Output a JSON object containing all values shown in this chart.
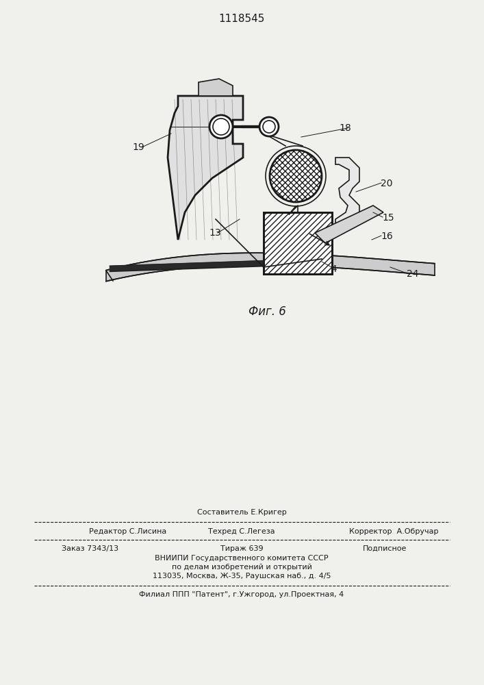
{
  "patent_number": "1118545",
  "fig_label": "Фиг. 6",
  "bg_color": "#f0f0ec",
  "line_color": "#1a1a1a",
  "footer": {
    "line1_center": "Составитель Е.Кригер",
    "line2_left": "Редактор С.Лисина",
    "line2_center": "Техред С.Легеза",
    "line2_right": "Корректор  А.Обручар",
    "line3_col1": "Заказ 7343/13",
    "line3_col2": "Тираж 639",
    "line3_col3": "Подписное",
    "line4": "ВНИИПИ Государственного комитета СССР",
    "line5": "по делам изобретений и открытий",
    "line6": "113035, Москва, Ж-35, Раушская наб., д. 4/5",
    "line7": "Филиал ППП \"Патент\", г.Ужгород, ул.Проектная, 4"
  }
}
